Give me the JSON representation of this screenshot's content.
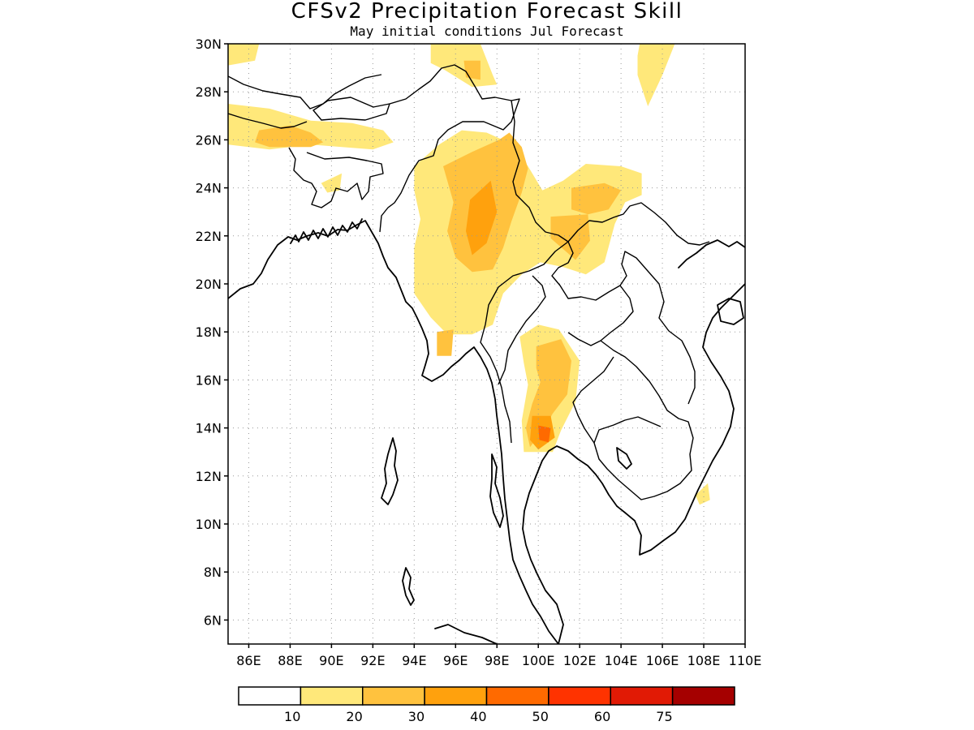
{
  "title": "CFSv2 Precipitation Forecast Skill",
  "subtitle": "May initial conditions  Jul Forecast",
  "map": {
    "lon_range": [
      85,
      110
    ],
    "lat_range": [
      5,
      30
    ],
    "lat_labels": [
      {
        "v": 30,
        "t": "30N"
      },
      {
        "v": 28,
        "t": "28N"
      },
      {
        "v": 26,
        "t": "26N"
      },
      {
        "v": 24,
        "t": "24N"
      },
      {
        "v": 22,
        "t": "22N"
      },
      {
        "v": 20,
        "t": "20N"
      },
      {
        "v": 18,
        "t": "18N"
      },
      {
        "v": 16,
        "t": "16N"
      },
      {
        "v": 14,
        "t": "14N"
      },
      {
        "v": 12,
        "t": "12N"
      },
      {
        "v": 10,
        "t": "10N"
      },
      {
        "v": 8,
        "t": "8N"
      },
      {
        "v": 6,
        "t": "6N"
      }
    ],
    "lon_labels": [
      {
        "v": 86,
        "t": "86E"
      },
      {
        "v": 88,
        "t": "88E"
      },
      {
        "v": 90,
        "t": "90E"
      },
      {
        "v": 92,
        "t": "92E"
      },
      {
        "v": 94,
        "t": "94E"
      },
      {
        "v": 96,
        "t": "96E"
      },
      {
        "v": 98,
        "t": "98E"
      },
      {
        "v": 100,
        "t": "100E"
      },
      {
        "v": 102,
        "t": "102E"
      },
      {
        "v": 104,
        "t": "104E"
      },
      {
        "v": 106,
        "t": "106E"
      },
      {
        "v": 108,
        "t": "108E"
      },
      {
        "v": 110,
        "t": "110E"
      }
    ],
    "grid": "dotted",
    "projection": "cylindrical equidistant"
  },
  "colorbar": {
    "colors": [
      "#ffffff",
      "#ffe87a",
      "#ffc23e",
      "#ffa10d",
      "#ff6a00",
      "#ff3300",
      "#e11a05",
      "#a50000"
    ],
    "labels": [
      "10",
      "20",
      "30",
      "40",
      "50",
      "60",
      "75"
    ]
  },
  "skill_regions": [
    {
      "level": 1,
      "name": "north-bangladesh-assam",
      "pts": [
        [
          85,
          27.5
        ],
        [
          87,
          27.3
        ],
        [
          89,
          26.8
        ],
        [
          91,
          26.7
        ],
        [
          92.5,
          26.4
        ],
        [
          93,
          25.9
        ],
        [
          92,
          25.6
        ],
        [
          89,
          25.8
        ],
        [
          87,
          25.6
        ],
        [
          85,
          25.8
        ]
      ]
    },
    {
      "level": 1,
      "name": "northwest-corner",
      "pts": [
        [
          85,
          30
        ],
        [
          86.5,
          30
        ],
        [
          86.3,
          29.3
        ],
        [
          85,
          29.1
        ]
      ]
    },
    {
      "level": 1,
      "name": "bangladesh-speck",
      "pts": [
        [
          89.5,
          24.2
        ],
        [
          90.5,
          24.6
        ],
        [
          90.4,
          23.9
        ],
        [
          89.8,
          23.8
        ]
      ]
    },
    {
      "level": 1,
      "name": "yunnan-north",
      "pts": [
        [
          94.8,
          30
        ],
        [
          97.2,
          30
        ],
        [
          97.8,
          28.7
        ],
        [
          98,
          28.3
        ],
        [
          96.8,
          28.2
        ],
        [
          95.5,
          28.9
        ],
        [
          94.8,
          29.2
        ]
      ]
    },
    {
      "level": 1,
      "name": "eastern-china-strip",
      "pts": [
        [
          104.9,
          30
        ],
        [
          106.6,
          30
        ],
        [
          106,
          28.7
        ],
        [
          105.3,
          27.4
        ],
        [
          104.8,
          28.7
        ],
        [
          104.8,
          29.5
        ]
      ]
    },
    {
      "level": 1,
      "name": "myanmar-yunnan-laos",
      "pts": [
        [
          94,
          24.9
        ],
        [
          95.2,
          25.8
        ],
        [
          96.3,
          26.4
        ],
        [
          97.5,
          26.3
        ],
        [
          98.8,
          25.8
        ],
        [
          99.5,
          24.9
        ],
        [
          100.2,
          23.9
        ],
        [
          101.2,
          24.3
        ],
        [
          102.3,
          25
        ],
        [
          104,
          24.9
        ],
        [
          105,
          24.6
        ],
        [
          105,
          23.7
        ],
        [
          104.2,
          23.4
        ],
        [
          103.7,
          22.5
        ],
        [
          103.2,
          20.9
        ],
        [
          102.3,
          20.4
        ],
        [
          101.2,
          20.7
        ],
        [
          100.1,
          20.9
        ],
        [
          99.2,
          20.4
        ],
        [
          98.3,
          19.6
        ],
        [
          97.8,
          18.3
        ],
        [
          96.8,
          17.9
        ],
        [
          95.6,
          17.9
        ],
        [
          94.8,
          18.6
        ],
        [
          94,
          19.6
        ],
        [
          94,
          21.5
        ],
        [
          94.3,
          22.7
        ],
        [
          94,
          23.9
        ]
      ]
    },
    {
      "level": 1,
      "name": "thailand-central",
      "pts": [
        [
          99.1,
          17.8
        ],
        [
          100,
          18.3
        ],
        [
          101,
          18.1
        ],
        [
          102,
          16.8
        ],
        [
          101.8,
          15.1
        ],
        [
          101.1,
          13.9
        ],
        [
          100.7,
          13
        ],
        [
          99.3,
          13
        ],
        [
          99.2,
          14.3
        ],
        [
          99.5,
          15.8
        ],
        [
          99.3,
          16.7
        ]
      ]
    },
    {
      "level": 1,
      "name": "southern-vietnam",
      "pts": [
        [
          107.6,
          11.2
        ],
        [
          108.2,
          11.7
        ],
        [
          108.3,
          11
        ],
        [
          107.8,
          10.8
        ]
      ]
    },
    {
      "level": 2,
      "name": "bangladesh-border",
      "pts": [
        [
          86.5,
          26.4
        ],
        [
          88,
          26.6
        ],
        [
          89,
          26.3
        ],
        [
          89.6,
          25.9
        ],
        [
          89,
          25.7
        ],
        [
          87,
          25.7
        ],
        [
          86.3,
          25.9
        ]
      ]
    },
    {
      "level": 2,
      "name": "myanmar-spine",
      "pts": [
        [
          95.4,
          24.9
        ],
        [
          96.8,
          25.5
        ],
        [
          98.1,
          26
        ],
        [
          98.6,
          26.3
        ],
        [
          99.2,
          25.7
        ],
        [
          99.5,
          24.8
        ],
        [
          99.2,
          23.8
        ],
        [
          98.7,
          22.6
        ],
        [
          98.3,
          21.5
        ],
        [
          97.8,
          20.6
        ],
        [
          96.8,
          20.5
        ],
        [
          96,
          21.1
        ],
        [
          95.6,
          22.2
        ],
        [
          95.9,
          23.4
        ],
        [
          95.6,
          24.3
        ]
      ]
    },
    {
      "level": 2,
      "name": "yunnan-patch",
      "pts": [
        [
          96.4,
          29.3
        ],
        [
          97.2,
          29.3
        ],
        [
          97.2,
          28.5
        ],
        [
          96.5,
          28.6
        ]
      ]
    },
    {
      "level": 2,
      "name": "laos-patch",
      "pts": [
        [
          100.6,
          22.8
        ],
        [
          102.4,
          22.9
        ],
        [
          102.5,
          21.8
        ],
        [
          101.8,
          21
        ],
        [
          100.6,
          21.9
        ]
      ]
    },
    {
      "level": 2,
      "name": "yunnan-east",
      "pts": [
        [
          101.6,
          24
        ],
        [
          103.2,
          24.2
        ],
        [
          104,
          23.9
        ],
        [
          103.4,
          23.1
        ],
        [
          102.4,
          22.9
        ],
        [
          101.6,
          23.1
        ]
      ]
    },
    {
      "level": 2,
      "name": "thailand-core",
      "pts": [
        [
          99.9,
          17.4
        ],
        [
          101.1,
          17.7
        ],
        [
          101.6,
          16.8
        ],
        [
          101.4,
          15.4
        ],
        [
          100.7,
          14.6
        ],
        [
          100.3,
          14
        ],
        [
          99.6,
          13.2
        ],
        [
          99.4,
          14
        ],
        [
          99.7,
          15
        ],
        [
          100.1,
          15.9
        ],
        [
          99.9,
          16.5
        ]
      ]
    },
    {
      "level": 2,
      "name": "myanmar-south-spot",
      "pts": [
        [
          95.1,
          18
        ],
        [
          95.9,
          18.1
        ],
        [
          95.8,
          17
        ],
        [
          95.1,
          17
        ]
      ]
    },
    {
      "level": 3,
      "name": "myanmar-core",
      "pts": [
        [
          96.7,
          23.5
        ],
        [
          97.7,
          24.3
        ],
        [
          98,
          23
        ],
        [
          97.5,
          21.7
        ],
        [
          96.8,
          21.2
        ],
        [
          96.5,
          22.2
        ]
      ]
    },
    {
      "level": 3,
      "name": "thailand-coast",
      "pts": [
        [
          99.7,
          14.5
        ],
        [
          100.6,
          14.5
        ],
        [
          100.8,
          13.6
        ],
        [
          100,
          13.1
        ],
        [
          99.6,
          13.5
        ]
      ]
    },
    {
      "level": 4,
      "name": "thailand-max",
      "pts": [
        [
          100,
          14.1
        ],
        [
          100.6,
          14
        ],
        [
          100.5,
          13.4
        ],
        [
          100.05,
          13.5
        ]
      ]
    }
  ]
}
